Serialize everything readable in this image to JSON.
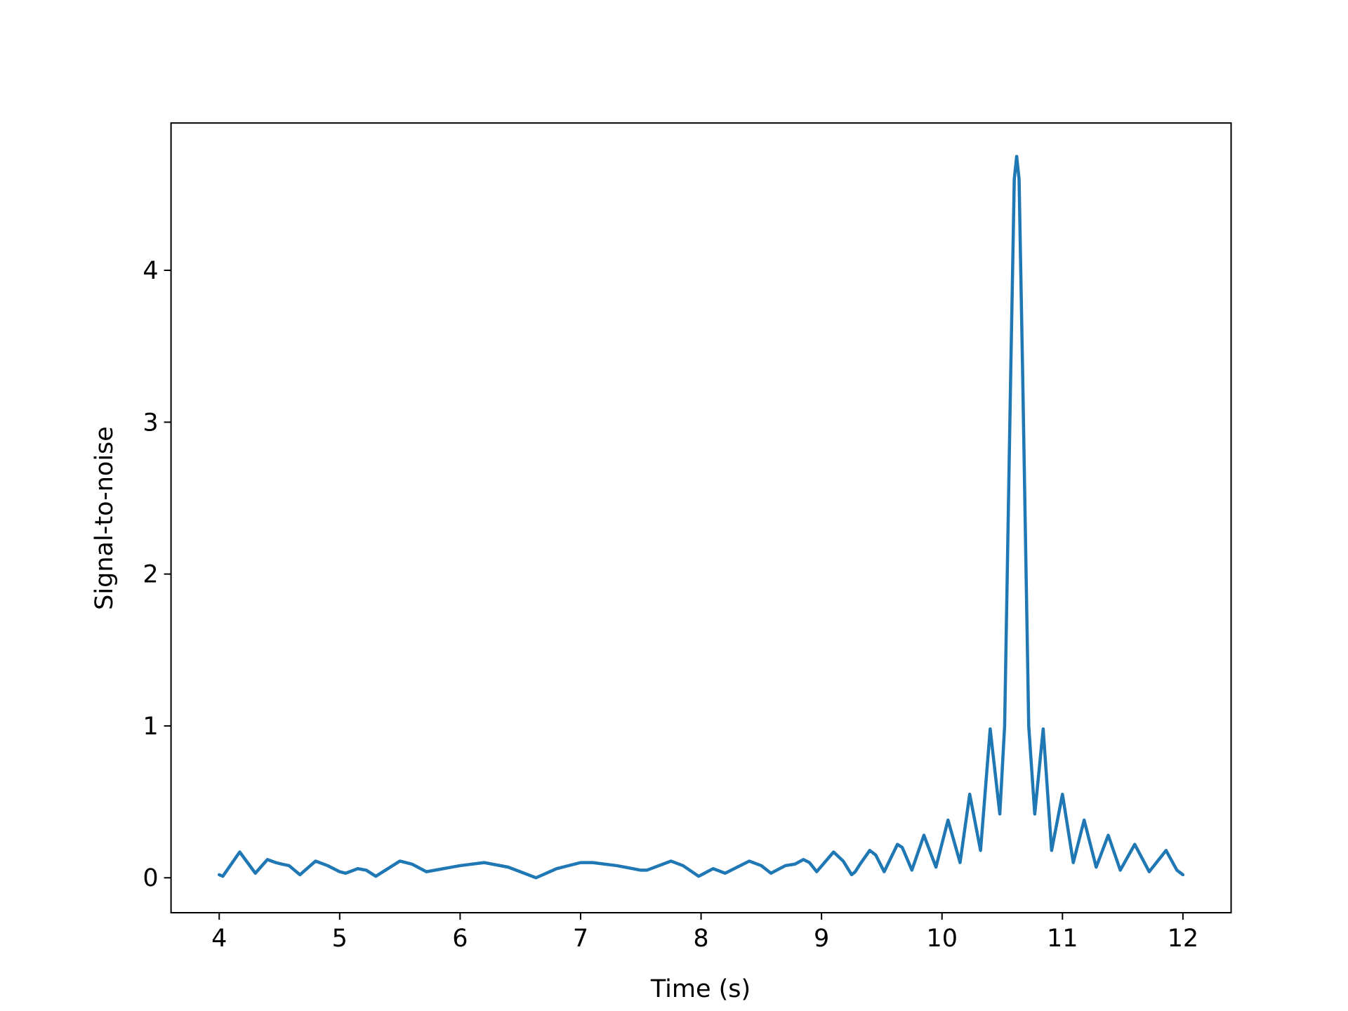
{
  "chart_data": {
    "type": "line",
    "xlabel": "Time (s)",
    "ylabel": "Signal-to-noise",
    "color": "#1f77b4",
    "grid": false,
    "xlim": [
      3.6,
      12.4
    ],
    "ylim": [
      -0.23,
      4.97
    ],
    "xticks": [
      4,
      5,
      6,
      7,
      8,
      9,
      10,
      11,
      12
    ],
    "yticks": [
      0,
      1,
      2,
      3,
      4
    ],
    "x": [
      4.0,
      4.03,
      4.17,
      4.3,
      4.4,
      4.47,
      4.52,
      4.58,
      4.67,
      4.8,
      4.9,
      5.0,
      5.05,
      5.15,
      5.22,
      5.3,
      5.5,
      5.6,
      5.72,
      6.0,
      6.2,
      6.4,
      6.63,
      6.8,
      7.0,
      7.1,
      7.3,
      7.5,
      7.55,
      7.75,
      7.85,
      7.98,
      8.1,
      8.2,
      8.4,
      8.5,
      8.58,
      8.7,
      8.78,
      8.85,
      8.9,
      8.96,
      9.1,
      9.18,
      9.25,
      9.28,
      9.32,
      9.4,
      9.45,
      9.52,
      9.63,
      9.67,
      9.75,
      9.85,
      9.95,
      10.05,
      10.15,
      10.23,
      10.32,
      10.4,
      10.48,
      10.52,
      10.57,
      10.6,
      10.62,
      10.64,
      10.67,
      10.72,
      10.77,
      10.84,
      10.91,
      11.0,
      11.09,
      11.18,
      11.28,
      11.38,
      11.48,
      11.6,
      11.72,
      11.86,
      11.95,
      12.0
    ],
    "y": [
      0.02,
      0.01,
      0.17,
      0.03,
      0.12,
      0.1,
      0.09,
      0.08,
      0.02,
      0.11,
      0.08,
      0.04,
      0.03,
      0.06,
      0.05,
      0.01,
      0.11,
      0.09,
      0.04,
      0.08,
      0.1,
      0.07,
      0.0,
      0.06,
      0.1,
      0.1,
      0.08,
      0.05,
      0.05,
      0.11,
      0.08,
      0.01,
      0.06,
      0.03,
      0.11,
      0.08,
      0.03,
      0.08,
      0.09,
      0.12,
      0.1,
      0.04,
      0.17,
      0.11,
      0.02,
      0.04,
      0.09,
      0.18,
      0.15,
      0.04,
      0.22,
      0.2,
      0.05,
      0.28,
      0.07,
      0.38,
      0.1,
      0.55,
      0.18,
      0.98,
      0.42,
      1.0,
      3.3,
      4.6,
      4.75,
      4.6,
      3.3,
      1.0,
      0.42,
      0.98,
      0.18,
      0.55,
      0.1,
      0.38,
      0.07,
      0.28,
      0.05,
      0.22,
      0.04,
      0.18,
      0.05,
      0.02
    ]
  }
}
